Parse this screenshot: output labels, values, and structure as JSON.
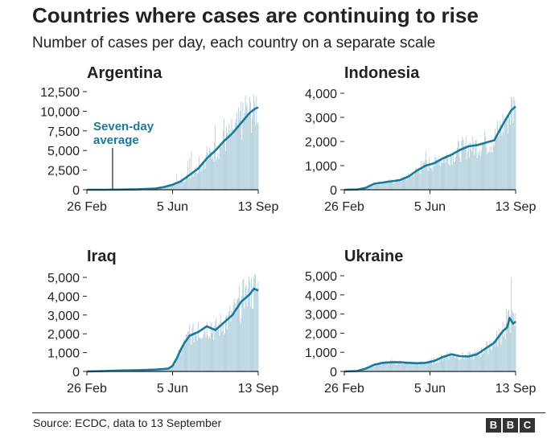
{
  "title": "Countries where cases are continuing to rise",
  "subtitle": "Number of cases per day, each country on a separate scale",
  "source": "Source: ECDC, data to 13 September",
  "logo_letters": [
    "B",
    "B",
    "C"
  ],
  "colors": {
    "line": "#1a7899",
    "bars": "#a9cbd9",
    "text": "#222222",
    "axis": "#222222"
  },
  "chart_data": [
    {
      "type": "bar+line",
      "title": "Argentina",
      "ylim": [
        0,
        12500
      ],
      "yticks": [
        0,
        2500,
        5000,
        7500,
        10000,
        12500
      ],
      "ytick_labels": [
        "0",
        "2,500",
        "5,000",
        "7,500",
        "10,000",
        "12,500"
      ],
      "xticks": [
        0,
        100,
        200
      ],
      "xtick_labels": [
        "26 Feb",
        "5 Jun",
        "13 Sep"
      ],
      "xlim": [
        0,
        200
      ],
      "annotation": {
        "text": [
          "Seven-day",
          "average"
        ],
        "x": 30,
        "y": 0
      },
      "average": [
        [
          0,
          0
        ],
        [
          20,
          0
        ],
        [
          40,
          20
        ],
        [
          60,
          60
        ],
        [
          80,
          150
        ],
        [
          90,
          350
        ],
        [
          100,
          650
        ],
        [
          110,
          1100
        ],
        [
          120,
          1900
        ],
        [
          130,
          2700
        ],
        [
          140,
          4000
        ],
        [
          150,
          5000
        ],
        [
          160,
          6200
        ],
        [
          170,
          7200
        ],
        [
          180,
          8500
        ],
        [
          190,
          9800
        ],
        [
          196,
          10300
        ],
        [
          200,
          10500
        ]
      ],
      "spikes": [
        [
          105,
          2000
        ],
        [
          110,
          1500
        ],
        [
          118,
          3600
        ],
        [
          120,
          4000
        ],
        [
          122,
          5000
        ],
        [
          126,
          2800
        ],
        [
          131,
          4200
        ],
        [
          140,
          5600
        ],
        [
          150,
          8200
        ],
        [
          160,
          9000
        ],
        [
          170,
          7700
        ],
        [
          180,
          11200
        ],
        [
          185,
          12000
        ],
        [
          190,
          11800
        ],
        [
          195,
          12100
        ],
        [
          198,
          12000
        ]
      ]
    },
    {
      "type": "bar+line",
      "title": "Indonesia",
      "ylim": [
        0,
        4000
      ],
      "yticks": [
        0,
        1000,
        2000,
        3000,
        4000
      ],
      "ytick_labels": [
        "0",
        "1,000",
        "2,000",
        "3,000",
        "4,000"
      ],
      "xticks": [
        0,
        100,
        200
      ],
      "xtick_labels": [
        "26 Feb",
        "5 Jun",
        "13 Sep"
      ],
      "xlim": [
        0,
        200
      ],
      "average": [
        [
          0,
          0
        ],
        [
          15,
          10
        ],
        [
          25,
          80
        ],
        [
          35,
          250
        ],
        [
          45,
          300
        ],
        [
          55,
          350
        ],
        [
          65,
          400
        ],
        [
          75,
          550
        ],
        [
          85,
          800
        ],
        [
          95,
          1000
        ],
        [
          105,
          1100
        ],
        [
          115,
          1300
        ],
        [
          125,
          1450
        ],
        [
          135,
          1650
        ],
        [
          145,
          1800
        ],
        [
          155,
          1850
        ],
        [
          165,
          1950
        ],
        [
          175,
          2050
        ],
        [
          185,
          2700
        ],
        [
          195,
          3300
        ],
        [
          200,
          3450
        ]
      ],
      "spikes": [
        [
          80,
          700
        ],
        [
          90,
          1200
        ],
        [
          95,
          1600
        ],
        [
          110,
          1300
        ],
        [
          125,
          1500
        ],
        [
          140,
          1800
        ],
        [
          150,
          2200
        ],
        [
          165,
          2200
        ],
        [
          180,
          2200
        ],
        [
          190,
          3100
        ],
        [
          196,
          3800
        ],
        [
          199,
          3700
        ]
      ]
    },
    {
      "type": "bar+line",
      "title": "Iraq",
      "ylim": [
        0,
        5000
      ],
      "yticks": [
        0,
        1000,
        2000,
        3000,
        4000,
        5000
      ],
      "ytick_labels": [
        "0",
        "1,000",
        "2,000",
        "3,000",
        "4,000",
        "5,000"
      ],
      "xticks": [
        0,
        100,
        200
      ],
      "xtick_labels": [
        "26 Feb",
        "5 Jun",
        "13 Sep"
      ],
      "xlim": [
        0,
        200
      ],
      "average": [
        [
          0,
          0
        ],
        [
          20,
          20
        ],
        [
          40,
          50
        ],
        [
          60,
          70
        ],
        [
          80,
          100
        ],
        [
          95,
          150
        ],
        [
          100,
          300
        ],
        [
          105,
          700
        ],
        [
          110,
          1200
        ],
        [
          115,
          1600
        ],
        [
          120,
          1900
        ],
        [
          130,
          2100
        ],
        [
          140,
          2400
        ],
        [
          145,
          2300
        ],
        [
          150,
          2200
        ],
        [
          160,
          2600
        ],
        [
          170,
          3000
        ],
        [
          180,
          3700
        ],
        [
          190,
          4100
        ],
        [
          195,
          4400
        ],
        [
          200,
          4300
        ]
      ],
      "spikes": [
        [
          120,
          2500
        ],
        [
          130,
          2600
        ],
        [
          145,
          2600
        ],
        [
          165,
          3000
        ],
        [
          175,
          3800
        ],
        [
          185,
          4500
        ],
        [
          190,
          4800
        ],
        [
          195,
          5000
        ]
      ]
    },
    {
      "type": "bar+line",
      "title": "Ukraine",
      "ylim": [
        0,
        5000
      ],
      "yticks": [
        0,
        1000,
        2000,
        3000,
        4000,
        5000
      ],
      "ytick_labels": [
        "0",
        "1,000",
        "2,000",
        "3,000",
        "4,000",
        "5,000"
      ],
      "xticks": [
        0,
        100,
        200
      ],
      "xtick_labels": [
        "26 Feb",
        "5 Jun",
        "13 Sep"
      ],
      "xlim": [
        0,
        200
      ],
      "average": [
        [
          0,
          0
        ],
        [
          15,
          20
        ],
        [
          25,
          150
        ],
        [
          35,
          350
        ],
        [
          45,
          450
        ],
        [
          55,
          480
        ],
        [
          65,
          480
        ],
        [
          75,
          450
        ],
        [
          85,
          430
        ],
        [
          95,
          450
        ],
        [
          105,
          550
        ],
        [
          115,
          750
        ],
        [
          125,
          900
        ],
        [
          135,
          800
        ],
        [
          145,
          780
        ],
        [
          155,
          900
        ],
        [
          165,
          1200
        ],
        [
          175,
          1500
        ],
        [
          185,
          2100
        ],
        [
          190,
          2300
        ],
        [
          193,
          2800
        ],
        [
          197,
          2500
        ],
        [
          200,
          2600
        ]
      ],
      "spikes": [
        [
          120,
          1000
        ],
        [
          150,
          1000
        ],
        [
          170,
          1600
        ],
        [
          185,
          2600
        ],
        [
          189,
          3300
        ],
        [
          195,
          4900
        ],
        [
          197,
          3100
        ]
      ]
    }
  ]
}
